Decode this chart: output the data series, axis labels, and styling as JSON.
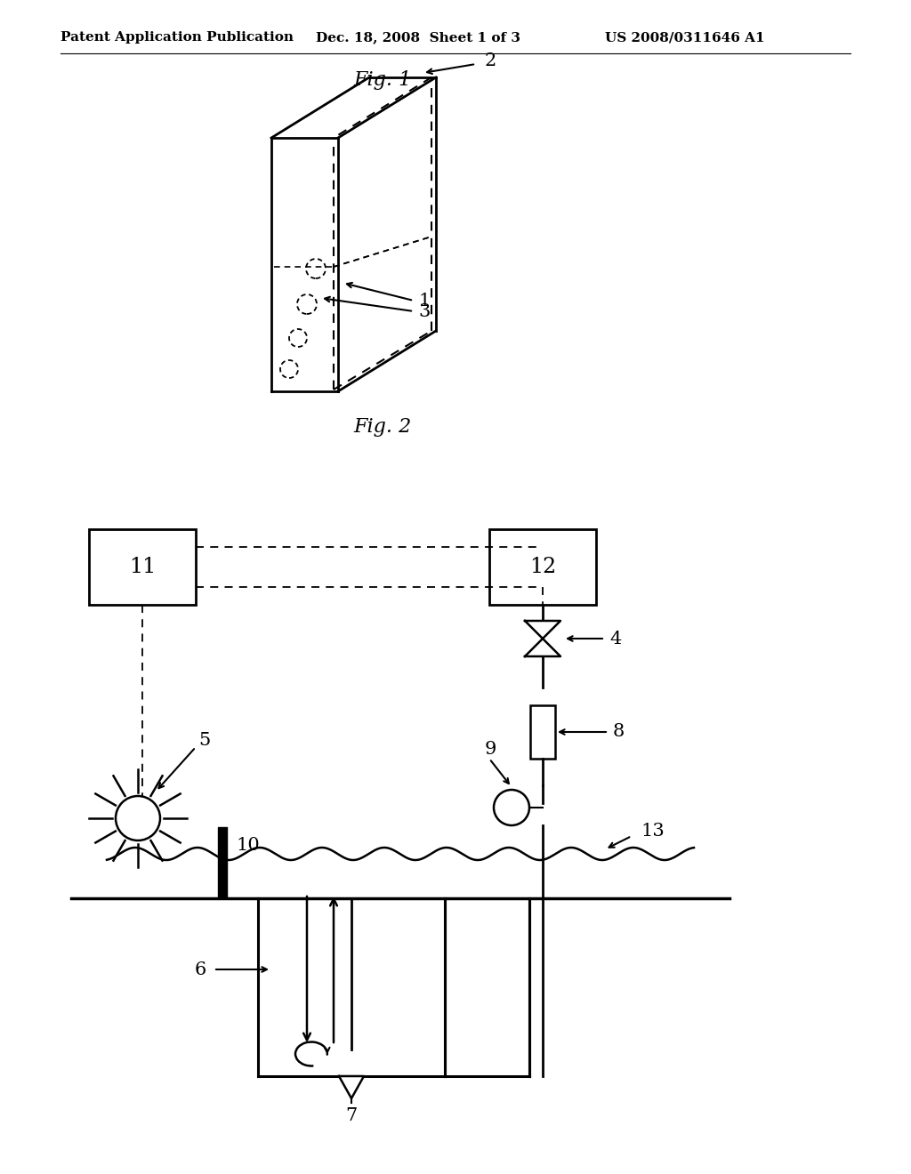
{
  "fig1_label": "Fig. 1",
  "fig2_label": "Fig. 2",
  "header_left": "Patent Application Publication",
  "header_mid": "Dec. 18, 2008  Sheet 1 of 3",
  "header_right": "US 2008/0311646 A1",
  "background_color": "#ffffff",
  "line_color": "#000000"
}
